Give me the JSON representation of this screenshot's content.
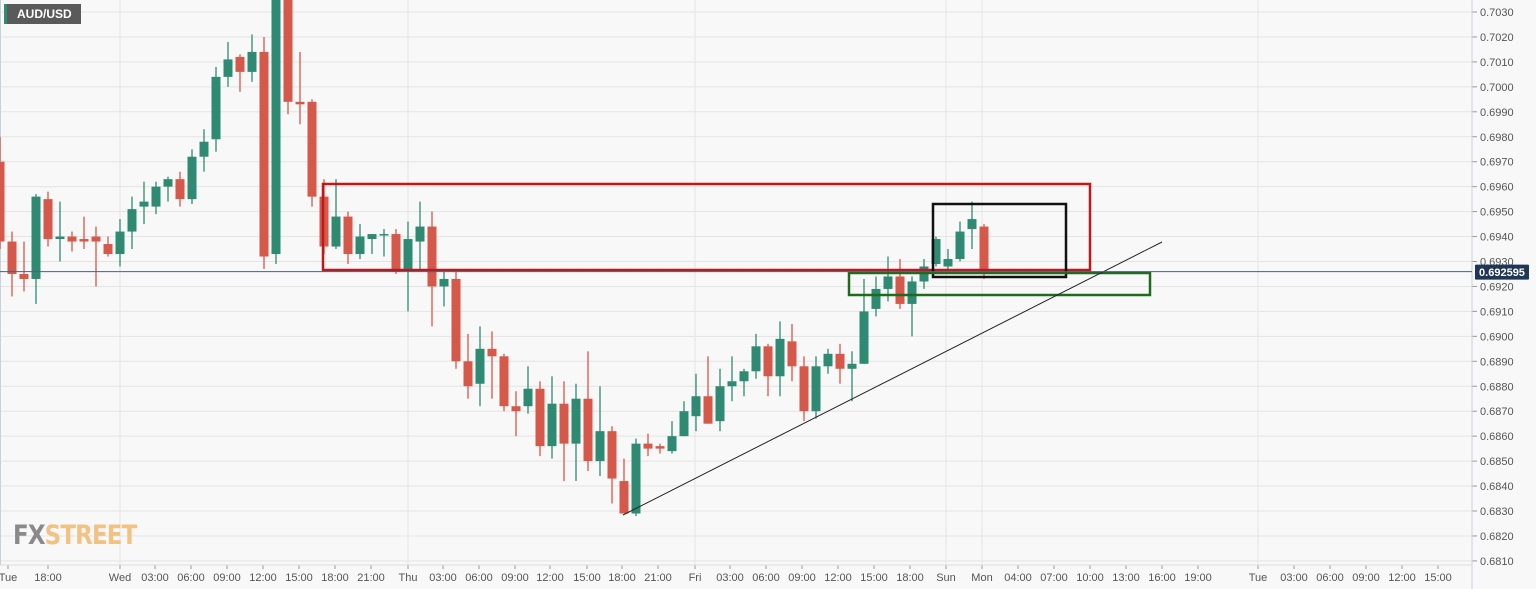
{
  "symbol": "AUD/USD",
  "logo": {
    "part1": "FX",
    "part2": "STREET"
  },
  "colors": {
    "up": "#2f8a73",
    "down": "#d6584a",
    "current_price_line": "#4a5f7e",
    "current_price_label_bg": "#1f3655",
    "zone_resistance": "#c01818",
    "zone_recent": "#111111",
    "zone_support": "#1e6b1e",
    "trendline": "#222222"
  },
  "chart_data": {
    "type": "candlestick",
    "title": "",
    "timeframe_hint": "hourly",
    "ylim": [
      0.6805,
      0.7035
    ],
    "y_ticks": [
      "0.7030",
      "0.7020",
      "0.7010",
      "0.7000",
      "0.6990",
      "0.6980",
      "0.6970",
      "0.6960",
      "0.6950",
      "0.6940",
      "0.6930",
      "0.6920",
      "0.6910",
      "0.6900",
      "0.6890",
      "0.6880",
      "0.6870",
      "0.6860",
      "0.6850",
      "0.6840",
      "0.6830",
      "0.6820",
      "0.6810"
    ],
    "x_ticks": [
      "Tue",
      "18:00",
      "Wed",
      "03:00",
      "06:00",
      "09:00",
      "12:00",
      "15:00",
      "18:00",
      "21:00",
      "Thu",
      "03:00",
      "06:00",
      "09:00",
      "12:00",
      "15:00",
      "18:00",
      "21:00",
      "Fri",
      "03:00",
      "06:00",
      "09:00",
      "12:00",
      "15:00",
      "18:00",
      "Sun",
      "Mon",
      "04:00",
      "07:00",
      "10:00",
      "13:00",
      "16:00",
      "19:00",
      "Tue",
      "03:00",
      "06:00",
      "09:00",
      "12:00",
      "15:00"
    ],
    "current_price": 0.692595,
    "current_price_label": "0.692595",
    "grid": true,
    "candles_ohlc": [
      [
        0.697,
        0.698,
        0.6935,
        0.6938
      ],
      [
        0.6938,
        0.6942,
        0.6916,
        0.6925
      ],
      [
        0.6925,
        0.6938,
        0.6918,
        0.6923
      ],
      [
        0.6923,
        0.6957,
        0.6913,
        0.6956
      ],
      [
        0.6955,
        0.6958,
        0.6936,
        0.6939
      ],
      [
        0.6939,
        0.6954,
        0.693,
        0.694
      ],
      [
        0.694,
        0.6942,
        0.6934,
        0.6938
      ],
      [
        0.6939,
        0.6948,
        0.6935,
        0.6938
      ],
      [
        0.694,
        0.6944,
        0.692,
        0.6938
      ],
      [
        0.6937,
        0.694,
        0.6932,
        0.6933
      ],
      [
        0.6933,
        0.6947,
        0.6928,
        0.6942
      ],
      [
        0.6942,
        0.6956,
        0.6935,
        0.6951
      ],
      [
        0.6952,
        0.6962,
        0.6945,
        0.6954
      ],
      [
        0.6952,
        0.6962,
        0.6949,
        0.696
      ],
      [
        0.696,
        0.6964,
        0.6954,
        0.6963
      ],
      [
        0.6963,
        0.6966,
        0.6952,
        0.6955
      ],
      [
        0.6955,
        0.6975,
        0.6953,
        0.6972
      ],
      [
        0.6972,
        0.6983,
        0.6966,
        0.6978
      ],
      [
        0.6979,
        0.7008,
        0.6974,
        0.7004
      ],
      [
        0.7004,
        0.7018,
        0.7,
        0.7011
      ],
      [
        0.7012,
        0.7013,
        0.6998,
        0.7006
      ],
      [
        0.7006,
        0.7021,
        0.7002,
        0.7014
      ],
      [
        0.7014,
        0.702,
        0.6927,
        0.6932
      ],
      [
        0.6933,
        0.7045,
        0.6929,
        0.704
      ],
      [
        0.704,
        0.7045,
        0.6989,
        0.6994
      ],
      [
        0.6994,
        0.7014,
        0.6985,
        0.6993
      ],
      [
        0.6994,
        0.6995,
        0.6952,
        0.6956
      ],
      [
        0.6956,
        0.6963,
        0.6933,
        0.6936
      ],
      [
        0.6936,
        0.6963,
        0.6935,
        0.6948
      ],
      [
        0.6948,
        0.695,
        0.6929,
        0.6933
      ],
      [
        0.6933,
        0.6945,
        0.6931,
        0.694
      ],
      [
        0.6939,
        0.6941,
        0.6933,
        0.6941
      ],
      [
        0.6941,
        0.6943,
        0.6932,
        0.6941
      ],
      [
        0.6941,
        0.6943,
        0.6925,
        0.6926
      ],
      [
        0.6927,
        0.6946,
        0.691,
        0.6939
      ],
      [
        0.6938,
        0.6954,
        0.6927,
        0.6944
      ],
      [
        0.6944,
        0.695,
        0.6904,
        0.692
      ],
      [
        0.692,
        0.6926,
        0.6912,
        0.6923
      ],
      [
        0.6923,
        0.6926,
        0.6887,
        0.689
      ],
      [
        0.689,
        0.6901,
        0.6875,
        0.688
      ],
      [
        0.6881,
        0.6904,
        0.6872,
        0.6895
      ],
      [
        0.6895,
        0.6902,
        0.6875,
        0.6892
      ],
      [
        0.6892,
        0.6893,
        0.687,
        0.6872
      ],
      [
        0.6872,
        0.6878,
        0.686,
        0.687
      ],
      [
        0.6872,
        0.6888,
        0.6869,
        0.6879
      ],
      [
        0.6879,
        0.6882,
        0.6852,
        0.6856
      ],
      [
        0.6856,
        0.6884,
        0.6851,
        0.6873
      ],
      [
        0.6873,
        0.6882,
        0.6842,
        0.6857
      ],
      [
        0.6857,
        0.6881,
        0.6842,
        0.6875
      ],
      [
        0.6875,
        0.6894,
        0.6846,
        0.685
      ],
      [
        0.685,
        0.688,
        0.6844,
        0.6862
      ],
      [
        0.6862,
        0.6864,
        0.6833,
        0.6843
      ],
      [
        0.6842,
        0.6851,
        0.6829,
        0.6829
      ],
      [
        0.6829,
        0.6859,
        0.6828,
        0.6857
      ],
      [
        0.6857,
        0.6861,
        0.6852,
        0.6855
      ],
      [
        0.6856,
        0.6857,
        0.6853,
        0.6855
      ],
      [
        0.6854,
        0.6866,
        0.6853,
        0.686
      ],
      [
        0.686,
        0.6874,
        0.686,
        0.687
      ],
      [
        0.6868,
        0.6885,
        0.6862,
        0.6876
      ],
      [
        0.6876,
        0.6892,
        0.6865,
        0.6865
      ],
      [
        0.6866,
        0.6887,
        0.6862,
        0.688
      ],
      [
        0.688,
        0.6892,
        0.6874,
        0.6882
      ],
      [
        0.6882,
        0.6887,
        0.6876,
        0.6886
      ],
      [
        0.6886,
        0.6901,
        0.6883,
        0.6896
      ],
      [
        0.6896,
        0.6897,
        0.6876,
        0.6884
      ],
      [
        0.6884,
        0.6906,
        0.6876,
        0.6899
      ],
      [
        0.6898,
        0.6905,
        0.6882,
        0.6888
      ],
      [
        0.6888,
        0.6892,
        0.6866,
        0.687
      ],
      [
        0.687,
        0.6892,
        0.6867,
        0.6888
      ],
      [
        0.6888,
        0.6895,
        0.6885,
        0.6893
      ],
      [
        0.6893,
        0.6897,
        0.6881,
        0.6887
      ],
      [
        0.6887,
        0.6894,
        0.6874,
        0.6889
      ],
      [
        0.6889,
        0.6923,
        0.6889,
        0.691
      ],
      [
        0.6911,
        0.6924,
        0.6908,
        0.6919
      ],
      [
        0.6919,
        0.6932,
        0.6914,
        0.6924
      ],
      [
        0.6924,
        0.6931,
        0.6911,
        0.6913
      ],
      [
        0.6913,
        0.6924,
        0.69,
        0.6922
      ],
      [
        0.6922,
        0.6931,
        0.6919,
        0.6928
      ],
      [
        0.6929,
        0.694,
        0.6928,
        0.6939
      ],
      [
        0.6928,
        0.6935,
        0.6927,
        0.6931
      ],
      [
        0.6931,
        0.6946,
        0.693,
        0.6942
      ],
      [
        0.6943,
        0.6954,
        0.6935,
        0.6947
      ],
      [
        0.6944,
        0.6945,
        0.6923,
        0.6926
      ]
    ]
  }
}
